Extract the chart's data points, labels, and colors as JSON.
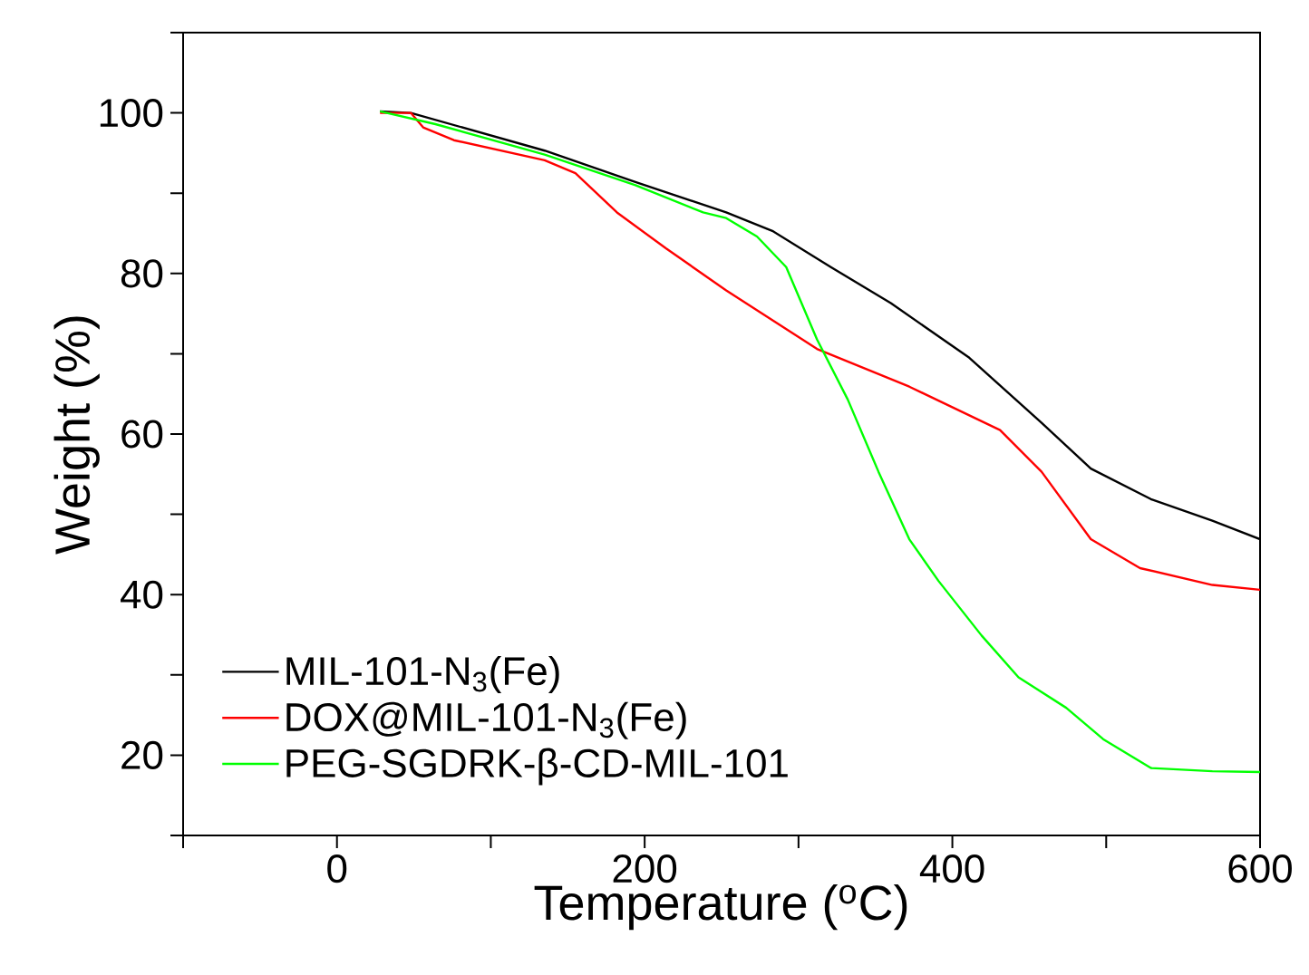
{
  "chart_data": {
    "type": "line",
    "xlabel": "Temperature ($^{o}$C)",
    "ylabel": "Weight (%)",
    "xlim": [
      -100,
      600
    ],
    "ylim": [
      10,
      110
    ],
    "xticks": [
      {
        "value": -100,
        "label": null
      },
      0,
      {
        "value": 100,
        "label": null
      },
      200,
      {
        "value": 300,
        "label": null
      },
      400,
      {
        "value": 500,
        "label": null
      },
      600
    ],
    "yticks": [
      {
        "value": 10,
        "label": null
      },
      20,
      {
        "value": 30,
        "label": null
      },
      40,
      {
        "value": 50,
        "label": null
      },
      60,
      {
        "value": 70,
        "label": null
      },
      80,
      {
        "value": 90,
        "label": null
      },
      100,
      {
        "value": 110,
        "label": null
      }
    ],
    "legend": "bottom left",
    "grid": false,
    "marker": "none",
    "line_style": "solid",
    "series": [
      {
        "name": "MIL-101-N$_{3}$(Fe)",
        "color": "#000000",
        "x": [
          28,
          48,
          135,
          194,
          253,
          283,
          321,
          360,
          411,
          458,
          490,
          529,
          569,
          600
        ],
        "values": [
          100.2,
          100,
          95.3,
          91.4,
          87.6,
          85.3,
          80.8,
          76.3,
          69.5,
          61.4,
          55.7,
          51.9,
          49.2,
          46.9
        ]
      },
      {
        "name": "DOX@MIL-101-N$_{3}$(Fe)",
        "color": "#ff0000",
        "x": [
          28,
          48,
          56,
          76,
          135,
          155,
          182,
          214,
          253,
          312,
          372,
          431,
          458,
          490,
          522,
          569,
          600
        ],
        "values": [
          100,
          100,
          98.2,
          96.6,
          94.1,
          92.5,
          87.6,
          83.1,
          77.9,
          70.6,
          65.9,
          60.5,
          55.3,
          46.9,
          43.3,
          41.2,
          40.6
        ]
      },
      {
        "name": "PEG-SGDRK-β-CD-MIL-101",
        "color": "#00ff00",
        "x": [
          28,
          64,
          135,
          194,
          238,
          253,
          273,
          292,
          312,
          332,
          352,
          372,
          391,
          419,
          443,
          474,
          498,
          529,
          569,
          600
        ],
        "values": [
          100.2,
          98.6,
          94.8,
          91,
          87.6,
          86.9,
          84.6,
          80.8,
          71.8,
          64.3,
          55.3,
          46.9,
          41.7,
          34.9,
          29.7,
          25.9,
          22,
          18.4,
          18,
          17.9
        ]
      }
    ]
  }
}
